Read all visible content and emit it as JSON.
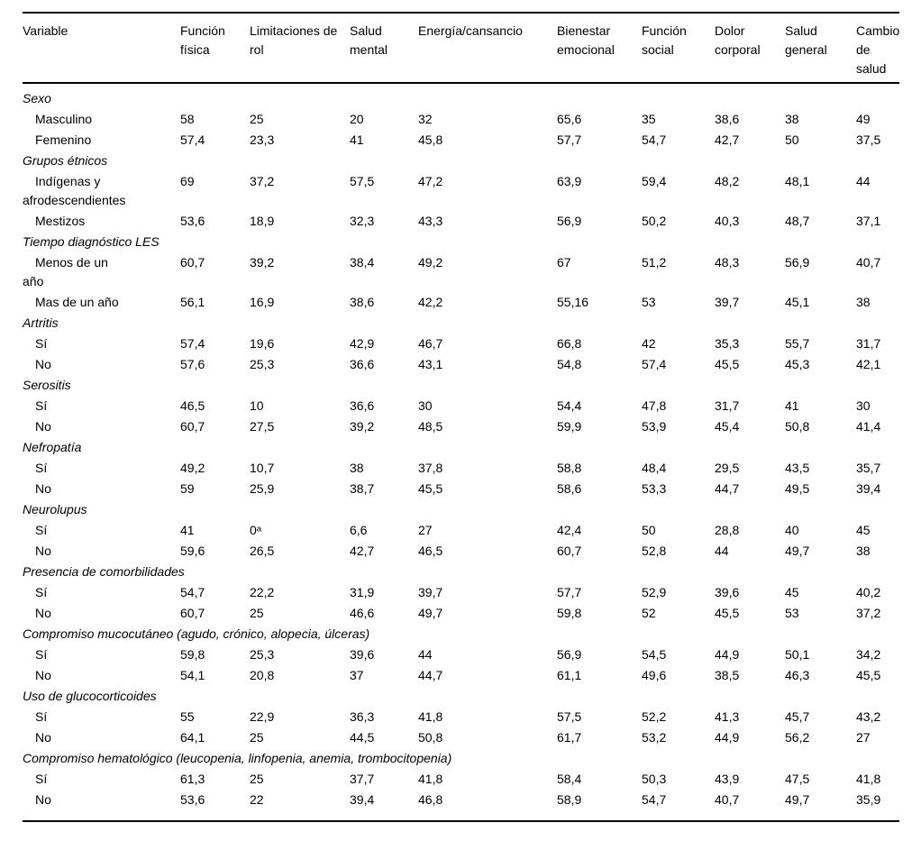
{
  "table": {
    "columns": [
      "Variable",
      "Función física",
      "Limitaciones de rol",
      "Salud mental",
      "Energía/cansancio",
      "Bienestar emocional",
      "Función social",
      "Dolor corporal",
      "Salud general",
      "Cambio de salud"
    ],
    "sections": [
      {
        "label": "Sexo",
        "rows": [
          {
            "label": "Masculino",
            "values": [
              "58",
              "25",
              "20",
              "32",
              "65,6",
              "35",
              "38,6",
              "38",
              "49"
            ]
          },
          {
            "label": "Femenino",
            "values": [
              "57,4",
              "23,3",
              "41",
              "45,8",
              "57,7",
              "54,7",
              "42,7",
              "50",
              "37,5"
            ]
          }
        ]
      },
      {
        "label": "Grupos étnicos",
        "rows": [
          {
            "label": "Indígenas y\nafrodescendientes",
            "values": [
              "69",
              "37,2",
              "57,5",
              "47,2",
              "63,9",
              "59,4",
              "48,2",
              "48,1",
              "44"
            ]
          },
          {
            "label": "Mestizos",
            "values": [
              "53,6",
              "18,9",
              "32,3",
              "43,3",
              "56,9",
              "50,2",
              "40,3",
              "48,7",
              "37,1"
            ]
          }
        ]
      },
      {
        "label": "Tiempo diagnóstico LES",
        "rows": [
          {
            "label": "Menos de un\naño",
            "values": [
              "60,7",
              "39,2",
              "38,4",
              "49,2",
              "67",
              "51,2",
              "48,3",
              "56,9",
              "40,7"
            ]
          },
          {
            "label": "Mas de un año",
            "values": [
              "56,1",
              "16,9",
              "38,6",
              "42,2",
              "55,16",
              "53",
              "39,7",
              "45,1",
              "38"
            ]
          }
        ]
      },
      {
        "label": "Artritis",
        "rows": [
          {
            "label": "Sí",
            "values": [
              "57,4",
              "19,6",
              "42,9",
              "46,7",
              "66,8",
              "42",
              "35,3",
              "55,7",
              "31,7"
            ]
          },
          {
            "label": "No",
            "values": [
              "57,6",
              "25,3",
              "36,6",
              "43,1",
              "54,8",
              "57,4",
              "45,5",
              "45,3",
              "42,1"
            ]
          }
        ]
      },
      {
        "label": "Serositis",
        "rows": [
          {
            "label": "Sí",
            "values": [
              "46,5",
              "10",
              "36,6",
              "30",
              "54,4",
              "47,8",
              "31,7",
              "41",
              "30"
            ]
          },
          {
            "label": "No",
            "values": [
              "60,7",
              "27,5",
              "39,2",
              "48,5",
              "59,9",
              "53,9",
              "45,4",
              "50,8",
              "41,4"
            ]
          }
        ]
      },
      {
        "label": "Nefropatía",
        "rows": [
          {
            "label": "Sí",
            "values": [
              "49,2",
              "10,7",
              "38",
              "37,8",
              "58,8",
              "48,4",
              "29,5",
              "43,5",
              "35,7"
            ]
          },
          {
            "label": "No",
            "values": [
              "59",
              "25,9",
              "38,7",
              "45,5",
              "58,6",
              "53,3",
              "44,7",
              "49,5",
              "39,4"
            ]
          }
        ]
      },
      {
        "label": "Neurolupus",
        "rows": [
          {
            "label": "Sí",
            "values": [
              "41",
              "0ᵃ",
              "6,6",
              "27",
              "42,4",
              "50",
              "28,8",
              "40",
              "45"
            ]
          },
          {
            "label": "No",
            "values": [
              "59,6",
              "26,5",
              "42,7",
              "46,5",
              "60,7",
              "52,8",
              "44",
              "49,7",
              "38"
            ]
          }
        ]
      },
      {
        "label": "Presencia de comorbilidades",
        "rows": [
          {
            "label": "Sí",
            "values": [
              "54,7",
              "22,2",
              "31,9",
              "39,7",
              "57,7",
              "52,9",
              "39,6",
              "45",
              "40,2"
            ]
          },
          {
            "label": "No",
            "values": [
              "60,7",
              "25",
              "46,6",
              "49,7",
              "59,8",
              "52",
              "45,5",
              "53",
              "37,2"
            ]
          }
        ]
      },
      {
        "label": "Compromiso mucocutáneo (agudo, crónico, alopecia, úlceras)",
        "rows": [
          {
            "label": "Sí",
            "values": [
              "59,8",
              "25,3",
              "39,6",
              "44",
              "56,9",
              "54,5",
              "44,9",
              "50,1",
              "34,2"
            ]
          },
          {
            "label": "No",
            "values": [
              "54,1",
              "20,8",
              "37",
              "44,7",
              "61,1",
              "49,6",
              "38,5",
              "46,3",
              "45,5"
            ]
          }
        ]
      },
      {
        "label": "Uso de glucocorticoides",
        "rows": [
          {
            "label": "Sí",
            "values": [
              "55",
              "22,9",
              "36,3",
              "41,8",
              "57,5",
              "52,2",
              "41,3",
              "45,7",
              "43,2"
            ]
          },
          {
            "label": "No",
            "values": [
              "64,1",
              "25",
              "44,5",
              "50,8",
              "61,7",
              "53,2",
              "44,9",
              "56,2",
              "27"
            ]
          }
        ]
      },
      {
        "label": "Compromiso hematológico (leucopenia, linfopenia, anemia, trombocitopenia)",
        "rows": [
          {
            "label": "Sí",
            "values": [
              "61,3",
              "25",
              "37,7",
              "41,8",
              "58,4",
              "50,3",
              "43,9",
              "47,5",
              "41,8"
            ]
          },
          {
            "label": "No",
            "values": [
              "53,6",
              "22",
              "39,4",
              "46,8",
              "58,9",
              "54,7",
              "40,7",
              "49,7",
              "35,9"
            ]
          }
        ]
      }
    ]
  }
}
